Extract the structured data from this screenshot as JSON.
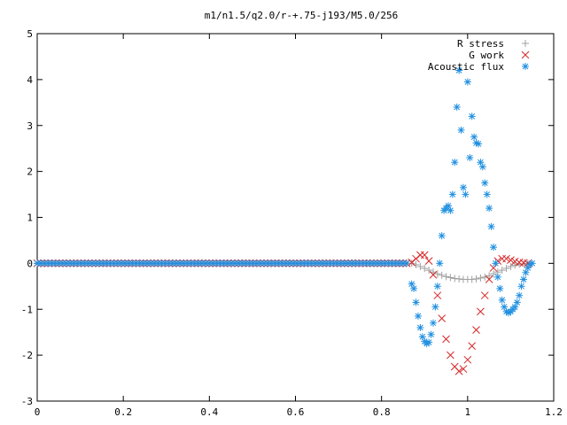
{
  "chart_data": {
    "type": "scatter",
    "title": "m1/n1.5/q2.0/r-+.75-j193/M5.0/256",
    "xlabel": "",
    "ylabel": "",
    "xlim": [
      0,
      1.2
    ],
    "ylim": [
      -3,
      5
    ],
    "xticks": [
      "0",
      "0.2",
      "0.4",
      "0.6",
      "0.8",
      "1",
      "1.2"
    ],
    "yticks": [
      "-3",
      "-2",
      "-1",
      "0",
      "1",
      "2",
      "3",
      "4",
      "5"
    ],
    "grid": false,
    "legend_position": "top-right",
    "series": [
      {
        "name": "R stress",
        "marker": "plus",
        "color": "#a0a0a0",
        "x": [
          0.87,
          0.88,
          0.89,
          0.9,
          0.91,
          0.92,
          0.93,
          0.94,
          0.95,
          0.96,
          0.97,
          0.98,
          0.99,
          1.0,
          1.01,
          1.02,
          1.03,
          1.04,
          1.05,
          1.06,
          1.07,
          1.08,
          1.09,
          1.1,
          1.11,
          1.12,
          1.13,
          1.14
        ],
        "y": [
          0.0,
          -0.03,
          -0.07,
          -0.11,
          -0.15,
          -0.19,
          -0.23,
          -0.26,
          -0.29,
          -0.31,
          -0.33,
          -0.34,
          -0.35,
          -0.35,
          -0.35,
          -0.34,
          -0.32,
          -0.3,
          -0.27,
          -0.23,
          -0.19,
          -0.15,
          -0.11,
          -0.07,
          -0.04,
          -0.02,
          -0.01,
          0.0
        ]
      },
      {
        "name": "G work",
        "marker": "cross",
        "color": "#d62728",
        "x": [
          0.87,
          0.88,
          0.89,
          0.9,
          0.91,
          0.92,
          0.93,
          0.94,
          0.95,
          0.96,
          0.97,
          0.98,
          0.99,
          1.0,
          1.01,
          1.02,
          1.03,
          1.04,
          1.05,
          1.06,
          1.07,
          1.08,
          1.09,
          1.1,
          1.11,
          1.12,
          1.13,
          1.14
        ],
        "y": [
          0.02,
          0.1,
          0.18,
          0.18,
          0.05,
          -0.25,
          -0.7,
          -1.2,
          -1.65,
          -2.0,
          -2.25,
          -2.35,
          -2.3,
          -2.1,
          -1.8,
          -1.45,
          -1.05,
          -0.7,
          -0.35,
          -0.1,
          0.05,
          0.1,
          0.1,
          0.07,
          0.04,
          0.02,
          0.01,
          0.0
        ]
      },
      {
        "name": "Acoustic flux",
        "marker": "star",
        "color": "#1f8fe0",
        "x": [
          0.87,
          0.875,
          0.88,
          0.885,
          0.89,
          0.895,
          0.9,
          0.905,
          0.91,
          0.915,
          0.92,
          0.925,
          0.93,
          0.935,
          0.94,
          0.945,
          0.95,
          0.955,
          0.96,
          0.965,
          0.97,
          0.975,
          0.98,
          0.985,
          0.99,
          0.995,
          1.0,
          1.005,
          1.01,
          1.015,
          1.02,
          1.025,
          1.03,
          1.035,
          1.04,
          1.045,
          1.05,
          1.055,
          1.06,
          1.065,
          1.07,
          1.075,
          1.08,
          1.085,
          1.09,
          1.095,
          1.1,
          1.105,
          1.11,
          1.115,
          1.12,
          1.125,
          1.13,
          1.135,
          1.14,
          1.145,
          1.15
        ],
        "y": [
          -0.45,
          -0.55,
          -0.85,
          -1.15,
          -1.4,
          -1.6,
          -1.7,
          -1.75,
          -1.72,
          -1.55,
          -1.3,
          -0.95,
          -0.5,
          0.0,
          0.6,
          1.15,
          1.2,
          1.25,
          1.15,
          1.5,
          2.2,
          3.4,
          4.2,
          2.9,
          1.65,
          1.5,
          3.95,
          2.3,
          3.2,
          2.75,
          2.62,
          2.6,
          2.2,
          2.1,
          1.75,
          1.5,
          1.2,
          0.8,
          0.35,
          0.0,
          -0.3,
          -0.55,
          -0.8,
          -0.95,
          -1.05,
          -1.08,
          -1.05,
          -1.0,
          -0.95,
          -0.85,
          -0.7,
          -0.5,
          -0.35,
          -0.2,
          -0.1,
          -0.02,
          0.0
        ]
      }
    ]
  }
}
